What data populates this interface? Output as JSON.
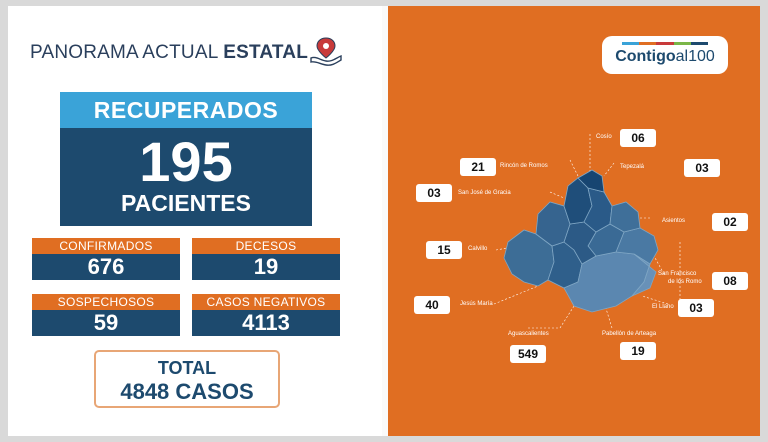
{
  "header": {
    "title_regular": "PANORAMA ACTUAL ",
    "title_bold": "ESTATAL"
  },
  "recuperados": {
    "label": "RECUPERADOS",
    "value": "195",
    "unit": "PACIENTES"
  },
  "stats": {
    "confirmados": {
      "label": "CONFIRMADOS",
      "value": "676"
    },
    "decesos": {
      "label": "DECESOS",
      "value": "19"
    },
    "sospechosos": {
      "label": "SOSPECHOSOS",
      "value": "59"
    },
    "negativos": {
      "label": "CASOS NEGATIVOS",
      "value": "4113"
    }
  },
  "total": {
    "label": "TOTAL",
    "value": "4848 CASOS"
  },
  "logo": {
    "bold": "Contigo",
    "regular": "al100",
    "stripe_colors": [
      "#3aa3d8",
      "#e06e22",
      "#c83a3a",
      "#7ab648",
      "#1d4a6e"
    ]
  },
  "colors": {
    "navy": "#1d4a6e",
    "orange": "#e06e22",
    "sky": "#3aa3d8"
  },
  "map": {
    "municipios": [
      {
        "name": "Cosío",
        "value": "06"
      },
      {
        "name": "Rincón de Romos",
        "value": "21"
      },
      {
        "name": "Tepezalá",
        "value": "03"
      },
      {
        "name": "San José de Gracia",
        "value": "03"
      },
      {
        "name": "Asientos",
        "value": "02"
      },
      {
        "name": "Calvillo",
        "value": "15"
      },
      {
        "name": "San Francisco",
        "name2": "de los Romo",
        "value": "08"
      },
      {
        "name": "Jesús María",
        "value": "40"
      },
      {
        "name": "El Llano",
        "value": "03"
      },
      {
        "name": "Aguascalientes",
        "value": "549"
      },
      {
        "name": "Pabellón de Arteaga",
        "value": "19"
      }
    ]
  }
}
